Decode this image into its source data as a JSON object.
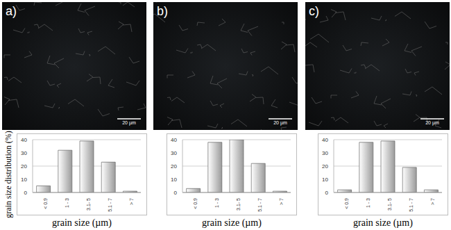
{
  "images": [
    {
      "label": "a)",
      "scale_bar": "20 µm"
    },
    {
      "label": "b)",
      "scale_bar": "20 µm"
    },
    {
      "label": "c)",
      "scale_bar": "20 µm"
    }
  ],
  "chart_data": [
    {
      "type": "bar",
      "categories": [
        "< 0.9",
        "1 - 3",
        "3.1- 5",
        "5.1 - 7",
        "> 7"
      ],
      "values": [
        5,
        32,
        39,
        23,
        1
      ],
      "x_label": "grain size (µm)",
      "y_label": "grain size distribution (%)",
      "ylim": [
        0,
        40
      ],
      "yticks": [
        0,
        10,
        20,
        30,
        40
      ],
      "grid": true,
      "color": "#9a9a9a"
    },
    {
      "type": "bar",
      "categories": [
        "< 0.9",
        "1 - 3",
        "3.1- 5",
        "5.1 - 7",
        "> 7"
      ],
      "values": [
        3,
        38,
        40,
        22,
        1
      ],
      "x_label": "grain size (µm)",
      "ylim": [
        0,
        40
      ],
      "yticks": [
        0,
        10,
        20,
        30,
        40
      ],
      "grid": true,
      "color": "#9a9a9a"
    },
    {
      "type": "bar",
      "categories": [
        "< 0.9",
        "1 - 3",
        "3.1- 5",
        "5.1 - 7",
        "> 7"
      ],
      "values": [
        2,
        38,
        39,
        19,
        2
      ],
      "x_label": "grain size (µm)",
      "ylim": [
        0,
        40
      ],
      "yticks": [
        0,
        10,
        20,
        30,
        40
      ],
      "grid": true,
      "color": "#9a9a9a"
    }
  ]
}
